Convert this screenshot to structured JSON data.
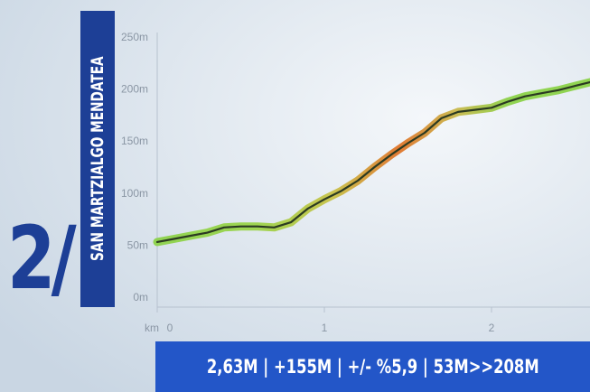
{
  "stage": {
    "number": "2/"
  },
  "route": {
    "name": "SAN MARTZIALGO MENDATEA"
  },
  "stats": {
    "text": "2,63M | +155M | +/- %5,9 | 53M>>208M"
  },
  "colors": {
    "brand_blue": "#1d3f96",
    "bar_blue": "#2356c8",
    "background": "#d8e2ec",
    "line_green": "#8cd24a",
    "line_orange": "#e0742a",
    "line_dark": "#2b3a22"
  },
  "chart_data": {
    "type": "line",
    "title": "",
    "xlabel": "",
    "ylabel": "",
    "x_unit_label": "km",
    "xlim": [
      0,
      2.63
    ],
    "ylim": [
      0,
      250
    ],
    "x_ticks": [
      {
        "value": 0,
        "label": "0"
      },
      {
        "value": 1,
        "label": "1"
      },
      {
        "value": 2,
        "label": "2"
      }
    ],
    "y_ticks": [
      {
        "value": 0,
        "label": "0m"
      },
      {
        "value": 50,
        "label": "50m"
      },
      {
        "value": 100,
        "label": "100m"
      },
      {
        "value": 150,
        "label": "150m"
      },
      {
        "value": 200,
        "label": "200m"
      },
      {
        "value": 250,
        "label": "250m"
      }
    ],
    "grid": false,
    "series": [
      {
        "x": [
          0,
          0.1,
          0.2,
          0.3,
          0.4,
          0.5,
          0.6,
          0.7,
          0.8,
          0.9,
          1.0,
          1.1,
          1.2,
          1.3,
          1.4,
          1.5,
          1.6,
          1.7,
          1.8,
          1.9,
          2.0,
          2.1,
          2.2,
          2.3,
          2.4,
          2.5,
          2.6,
          2.63
        ],
        "y": [
          53,
          56,
          59,
          62,
          67,
          68,
          68,
          67,
          72,
          85,
          94,
          102,
          112,
          125,
          137,
          148,
          158,
          172,
          178,
          180,
          182,
          188,
          193,
          196,
          199,
          203,
          207,
          208
        ]
      }
    ]
  }
}
